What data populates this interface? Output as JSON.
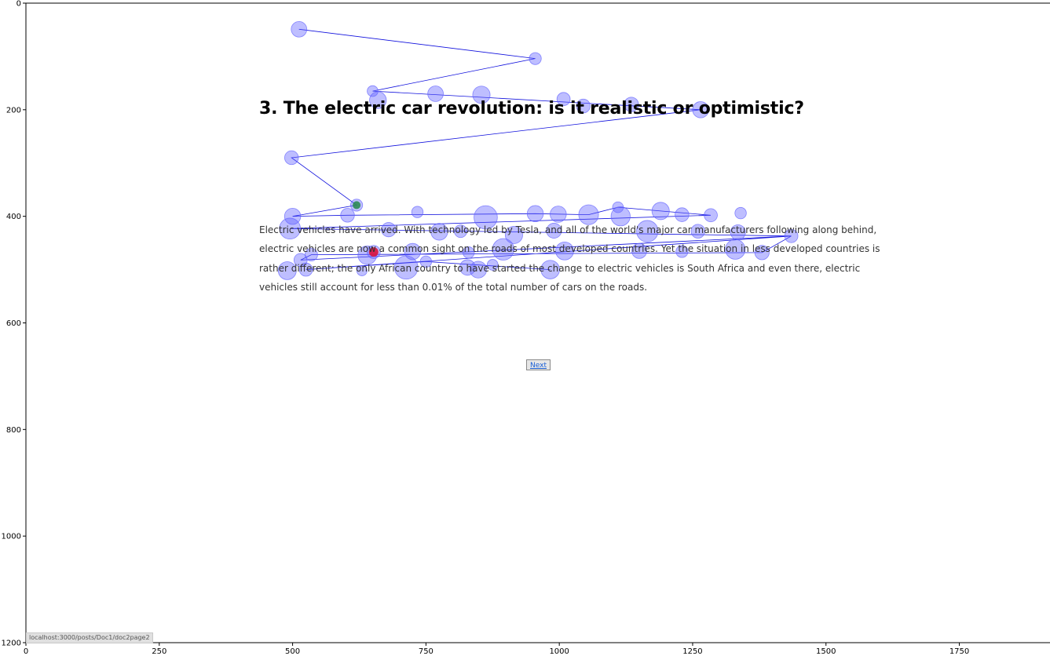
{
  "page": {
    "title": "3. The electric car revolution: is it realistic or optimistic?",
    "paragraph_lines": [
      "Electric vehicles have arrived. With technology led by Tesla, and all of the world's major car manufacturers following along behind,",
      "electric vehicles are now a common sight on the roads of most developed countries. Yet the situation in less developed countries is",
      "rather different; the only African country to have started the change to electric vehicles is South Africa and even there, electric",
      "vehicles still account for less than 0.01% of the total number of cars on the roads."
    ],
    "next_label": "Next",
    "status_url": "localhost:3000/posts/Doc1/doc2page2"
  },
  "chart_data": {
    "type": "scatter",
    "title": "",
    "xlabel": "",
    "ylabel": "",
    "xlim": [
      0,
      1920
    ],
    "ylim": [
      1200,
      0
    ],
    "x_ticks": [
      0,
      250,
      500,
      750,
      1000,
      1250,
      1500,
      1750
    ],
    "y_ticks": [
      0,
      200,
      400,
      600,
      800,
      1000,
      1200
    ],
    "grid": false,
    "colors": {
      "fixation": "#6464ff",
      "start": "#2e8b57",
      "end": "#dc143c",
      "path": "#1010dd"
    },
    "start_point": [
      620,
      379
    ],
    "end_point": [
      652,
      467
    ],
    "fixations": [
      {
        "x": 512,
        "y": 49,
        "d": 1.3
      },
      {
        "x": 955,
        "y": 104,
        "d": 0.7
      },
      {
        "x": 650,
        "y": 165,
        "d": 0.5
      },
      {
        "x": 660,
        "y": 182,
        "d": 1.5
      },
      {
        "x": 768,
        "y": 170,
        "d": 1.3
      },
      {
        "x": 854,
        "y": 172,
        "d": 1.6
      },
      {
        "x": 1008,
        "y": 180,
        "d": 0.9
      },
      {
        "x": 1045,
        "y": 193,
        "d": 1.0
      },
      {
        "x": 1135,
        "y": 190,
        "d": 1.1
      },
      {
        "x": 1265,
        "y": 200,
        "d": 1.4
      },
      {
        "x": 498,
        "y": 290,
        "d": 1.0
      },
      {
        "x": 620,
        "y": 379,
        "d": 0.7
      },
      {
        "x": 500,
        "y": 400,
        "d": 1.4
      },
      {
        "x": 603,
        "y": 398,
        "d": 1.0
      },
      {
        "x": 734,
        "y": 392,
        "d": 0.6
      },
      {
        "x": 862,
        "y": 402,
        "d": 2.6
      },
      {
        "x": 955,
        "y": 395,
        "d": 1.4
      },
      {
        "x": 998,
        "y": 396,
        "d": 1.4
      },
      {
        "x": 1055,
        "y": 397,
        "d": 2.0
      },
      {
        "x": 1110,
        "y": 383,
        "d": 0.5
      },
      {
        "x": 1115,
        "y": 400,
        "d": 1.9
      },
      {
        "x": 1190,
        "y": 390,
        "d": 1.6
      },
      {
        "x": 1230,
        "y": 397,
        "d": 1.0
      },
      {
        "x": 1284,
        "y": 398,
        "d": 0.9
      },
      {
        "x": 1340,
        "y": 394,
        "d": 0.6
      },
      {
        "x": 495,
        "y": 423,
        "d": 2.2
      },
      {
        "x": 680,
        "y": 425,
        "d": 1.1
      },
      {
        "x": 775,
        "y": 429,
        "d": 1.5
      },
      {
        "x": 815,
        "y": 428,
        "d": 0.8
      },
      {
        "x": 915,
        "y": 435,
        "d": 1.6
      },
      {
        "x": 990,
        "y": 427,
        "d": 1.2
      },
      {
        "x": 1165,
        "y": 428,
        "d": 2.3
      },
      {
        "x": 1260,
        "y": 428,
        "d": 1.0
      },
      {
        "x": 1335,
        "y": 430,
        "d": 1.2
      },
      {
        "x": 1435,
        "y": 437,
        "d": 0.9
      },
      {
        "x": 535,
        "y": 472,
        "d": 0.8
      },
      {
        "x": 515,
        "y": 482,
        "d": 0.9
      },
      {
        "x": 640,
        "y": 473,
        "d": 1.8
      },
      {
        "x": 725,
        "y": 466,
        "d": 1.4
      },
      {
        "x": 830,
        "y": 468,
        "d": 0.6
      },
      {
        "x": 895,
        "y": 462,
        "d": 2.3
      },
      {
        "x": 1010,
        "y": 465,
        "d": 1.7
      },
      {
        "x": 1150,
        "y": 465,
        "d": 1.2
      },
      {
        "x": 1230,
        "y": 466,
        "d": 0.7
      },
      {
        "x": 1330,
        "y": 462,
        "d": 2.0
      },
      {
        "x": 1380,
        "y": 468,
        "d": 1.1
      },
      {
        "x": 652,
        "y": 467,
        "d": 0.9
      },
      {
        "x": 490,
        "y": 502,
        "d": 1.7
      },
      {
        "x": 525,
        "y": 500,
        "d": 0.9
      },
      {
        "x": 630,
        "y": 502,
        "d": 0.4
      },
      {
        "x": 713,
        "y": 496,
        "d": 2.6
      },
      {
        "x": 750,
        "y": 485,
        "d": 0.6
      },
      {
        "x": 828,
        "y": 496,
        "d": 1.3
      },
      {
        "x": 848,
        "y": 500,
        "d": 1.5
      },
      {
        "x": 875,
        "y": 491,
        "d": 0.5
      },
      {
        "x": 983,
        "y": 500,
        "d": 1.8
      }
    ],
    "path": [
      [
        512,
        49
      ],
      [
        955,
        104
      ],
      [
        650,
        165
      ],
      [
        1265,
        200
      ],
      [
        498,
        290
      ],
      [
        620,
        379
      ],
      [
        500,
        400
      ],
      [
        603,
        398
      ],
      [
        955,
        395
      ],
      [
        1055,
        397
      ],
      [
        1110,
        383
      ],
      [
        1190,
        390
      ],
      [
        1284,
        398
      ],
      [
        495,
        423
      ],
      [
        1435,
        437
      ],
      [
        515,
        482
      ],
      [
        535,
        472
      ],
      [
        1380,
        468
      ],
      [
        1435,
        437
      ],
      [
        525,
        500
      ],
      [
        750,
        485
      ],
      [
        983,
        500
      ]
    ]
  }
}
